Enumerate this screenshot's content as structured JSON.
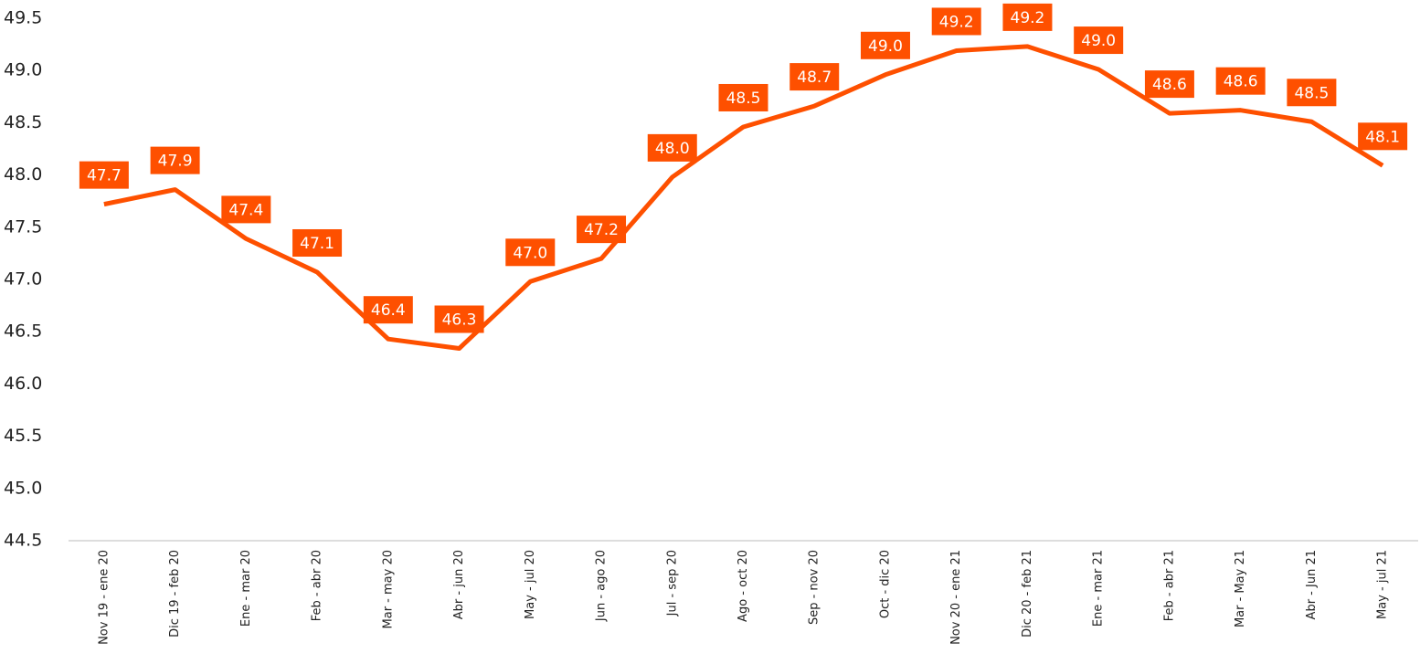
{
  "chart_data": {
    "type": "line",
    "categories": [
      "Nov 19 - ene 20",
      "Dic 19 - feb 20",
      "Ene - mar 20",
      "Feb - abr 20",
      "Mar - may 20",
      "Abr - jun 20",
      "May - jul 20",
      "Jun - ago 20",
      "Jul - sep 20",
      "Ago - oct 20",
      "Sep - nov 20",
      "Oct - dic 20",
      "Nov 20 - ene 21",
      "Dic 20 - feb 21",
      "Ene - mar 21",
      "Feb - abr 21",
      "Mar - May 21",
      "Abr - Jun 21",
      "May - jul 21"
    ],
    "values": [
      47.72,
      47.86,
      47.39,
      47.07,
      46.43,
      46.34,
      46.98,
      47.2,
      47.98,
      48.46,
      48.66,
      48.96,
      49.19,
      49.23,
      49.01,
      48.59,
      48.62,
      48.51,
      48.09
    ],
    "value_labels": [
      "47.7",
      "47.9",
      "47.4",
      "47.1",
      "46.4",
      "46.3",
      "47.0",
      "47.2",
      "48.0",
      "48.5",
      "48.7",
      "49.0",
      "49.2",
      "49.2",
      "49.0",
      "48.6",
      "48.6",
      "48.5",
      "48.1"
    ],
    "color": "#fe5000",
    "ylim": [
      44.5,
      49.5
    ],
    "yticks": [
      44.5,
      {
        "value": 45,
        "label": "45.0"
      },
      45.5,
      {
        "value": 46,
        "label": "46.0"
      },
      46.5,
      {
        "value": 47,
        "label": "47.0"
      },
      47.5,
      {
        "value": 48,
        "label": "48.0"
      },
      48.5,
      {
        "value": 49,
        "label": "49.0"
      },
      49.5
    ],
    "grid": false
  }
}
